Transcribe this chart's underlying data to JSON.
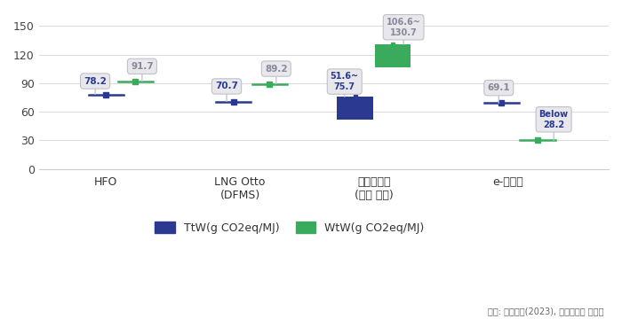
{
  "categories": [
    "HFO",
    "LNG Otto\n(DFMS)",
    "바이오디젤\n(유지 작물)",
    "e-메탄올"
  ],
  "x_positions": [
    0,
    1,
    2,
    3
  ],
  "ttw_color": "#2b3990",
  "wtw_color": "#3aaa5c",
  "hfo_ttw": 78.2,
  "hfo_wtw": 91.7,
  "lng_ttw": 70.7,
  "lng_wtw": 89.2,
  "bio_ttw_lo": 51.6,
  "bio_ttw_hi": 75.7,
  "bio_wtw_lo": 106.6,
  "bio_wtw_hi": 130.7,
  "emeth_ttw": 69.1,
  "emeth_wtw": 30.0,
  "ylim": [
    0,
    160
  ],
  "yticks": [
    0,
    30,
    60,
    90,
    120,
    150
  ],
  "legend_ttw": "TtW(g CO2eq/MJ)",
  "legend_wtw": "WtW(g CO2eq/MJ)",
  "source_text": "출처: 한국선급(2023), 기후솔루션 재구성",
  "background_color": "#ffffff",
  "grid_color": "#dddddd",
  "tooltip_bg": "#e8e8ec",
  "tooltip_edge": "#c0c0c8",
  "line_half": 0.13,
  "bar_width": 0.15,
  "bar_gap": 0.13
}
